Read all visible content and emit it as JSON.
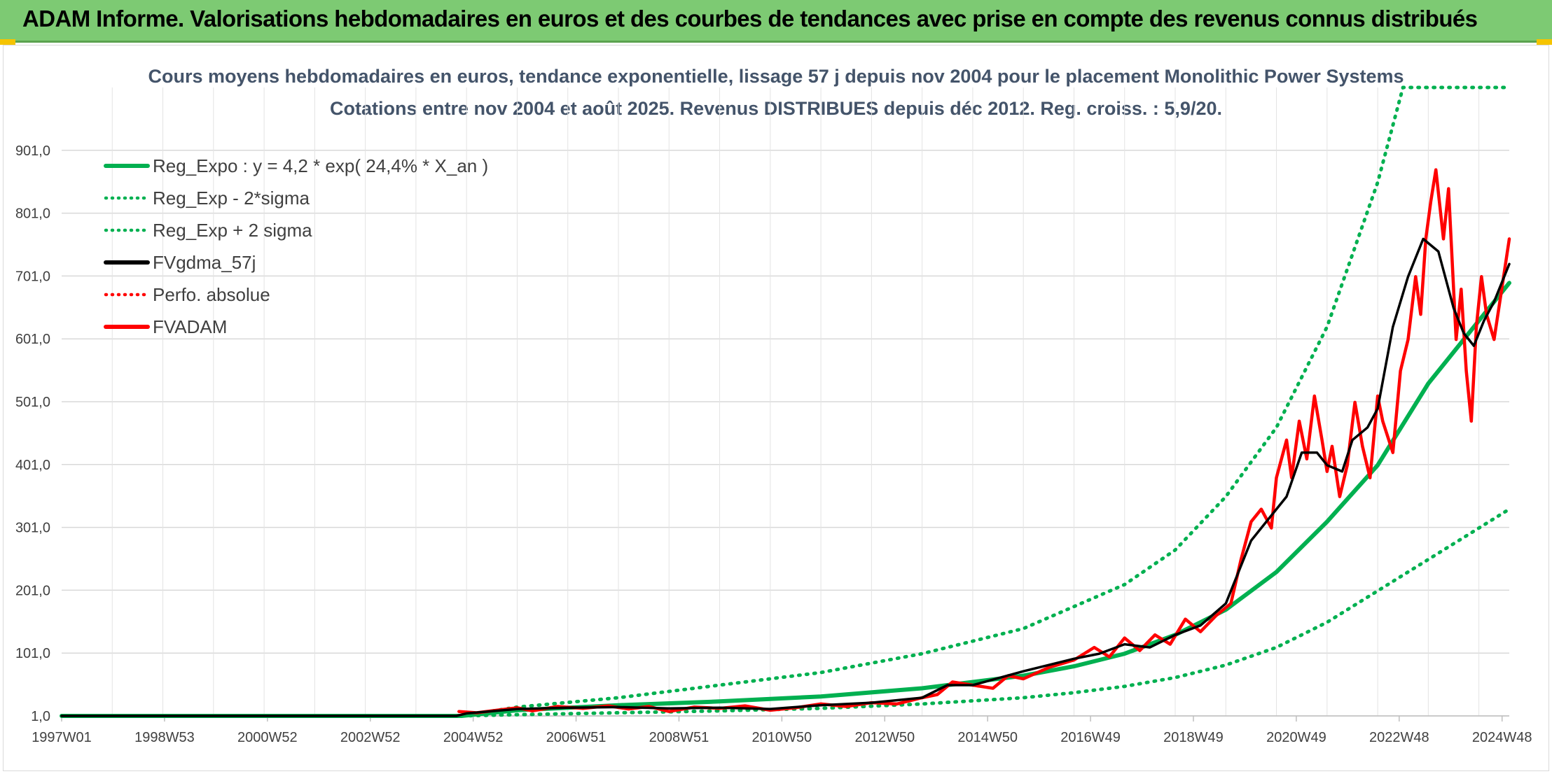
{
  "header": {
    "title": "ADAM Informe. Valorisations hebdomadaires en euros et des courbes de tendances avec prise en compte des revenus connus distribués"
  },
  "colors": {
    "header_bg": "#7dca73",
    "regression": "#00b050",
    "smoothing": "#000000",
    "price": "#ff0000"
  },
  "chart_data": {
    "type": "line",
    "title": "Cours moyens hebdomadaires en euros, tendance exponentielle, lissage 57 j depuis nov 2004 pour le placement Monolithic Power Systems",
    "subtitle": "Cotations entre nov 2004 et août 2025. Revenus DISTRIBUES depuis déc 2012. Reg. croiss. : 5,9/20.",
    "xlabel": "",
    "ylabel": "",
    "x_range": [
      1997.0,
      2025.6
    ],
    "ylim": [
      1.0,
      1001.0
    ],
    "y_ticks": [
      "1,0",
      "101,0",
      "201,0",
      "301,0",
      "401,0",
      "501,0",
      "601,0",
      "701,0",
      "801,0",
      "901,0"
    ],
    "x_ticks": [
      "1997W01",
      "1998W53",
      "2000W52",
      "2002W52",
      "2004W52",
      "2006W51",
      "2008W51",
      "2010W50",
      "2012W50",
      "2014W50",
      "2016W49",
      "2018W49",
      "2020W49",
      "2022W48",
      "2024W48"
    ],
    "grid": true,
    "legend_position": "top-left",
    "legend": [
      {
        "label": "Reg_Expo : y = 4,2 * exp( 24,4% *  X_an )",
        "color": "#00b050",
        "style": "solid"
      },
      {
        "label": "Reg_Exp - 2*sigma",
        "color": "#00b050",
        "style": "dotted"
      },
      {
        "label": "Reg_Exp + 2 sigma",
        "color": "#00b050",
        "style": "dotted"
      },
      {
        "label": "FVgdma_57j",
        "color": "#000000",
        "style": "solid"
      },
      {
        "label": "Perfo. absolue",
        "color": "#ff0000",
        "style": "dotted"
      },
      {
        "label": "FVADAM",
        "color": "#ff0000",
        "style": "solid"
      }
    ],
    "series": [
      {
        "name": "Reg_Expo : y = 4,2 * exp( 24,4% *  X_an )",
        "x": [
          1997.0,
          2004.9,
          2006.0,
          2008.0,
          2010.0,
          2012.0,
          2014.0,
          2016.0,
          2017.0,
          2018.0,
          2019.0,
          2020.0,
          2021.0,
          2022.0,
          2023.0,
          2024.0,
          2025.6
        ],
        "values": [
          1.0,
          1.0,
          10,
          18,
          24,
          32,
          45,
          65,
          80,
          100,
          130,
          170,
          230,
          310,
          400,
          530,
          690
        ]
      },
      {
        "name": "Reg_Exp - 2*sigma",
        "x": [
          1997.0,
          2004.9,
          2006.0,
          2008.0,
          2010.0,
          2012.0,
          2014.0,
          2016.0,
          2017.0,
          2018.0,
          2019.0,
          2020.0,
          2021.0,
          2022.0,
          2023.0,
          2024.0,
          2025.6
        ],
        "values": [
          1.0,
          1.0,
          3,
          6,
          9,
          13,
          20,
          30,
          38,
          48,
          62,
          82,
          110,
          150,
          200,
          250,
          330
        ]
      },
      {
        "name": "Reg_Exp + 2 sigma",
        "x": [
          1997.0,
          2004.9,
          2006.0,
          2008.0,
          2010.0,
          2012.0,
          2014.0,
          2016.0,
          2017.0,
          2018.0,
          2019.0,
          2020.0,
          2021.0,
          2022.0,
          2023.0,
          2023.5,
          2025.6
        ],
        "values": [
          1.0,
          1.0,
          15,
          30,
          50,
          70,
          100,
          140,
          175,
          210,
          265,
          350,
          460,
          620,
          850,
          1001,
          1001
        ]
      },
      {
        "name": "FVgdma_57j",
        "x": [
          1997.0,
          2004.8,
          2005.0,
          2006.0,
          2007.0,
          2008.0,
          2009.0,
          2010.0,
          2011.0,
          2012.0,
          2013.0,
          2014.0,
          2014.5,
          2015.0,
          2016.0,
          2017.0,
          2017.5,
          2018.0,
          2018.5,
          2019.0,
          2019.5,
          2020.0,
          2020.5,
          2020.8,
          2021.2,
          2021.5,
          2021.8,
          2022.0,
          2022.3,
          2022.5,
          2022.8,
          2023.0,
          2023.3,
          2023.6,
          2023.9,
          2024.2,
          2024.5,
          2024.7,
          2024.9,
          2025.1,
          2025.3,
          2025.6
        ],
        "values": [
          1.0,
          1.0,
          5,
          12,
          14,
          15,
          13,
          14,
          12,
          18,
          22,
          30,
          50,
          50,
          72,
          92,
          100,
          115,
          110,
          130,
          145,
          180,
          280,
          310,
          350,
          420,
          420,
          400,
          390,
          440,
          460,
          490,
          620,
          700,
          760,
          740,
          650,
          610,
          590,
          630,
          660,
          720
        ]
      },
      {
        "name": "FVADAM",
        "x": [
          2004.85,
          2005.2,
          2005.6,
          2006.0,
          2006.3,
          2006.8,
          2007.3,
          2007.8,
          2008.2,
          2008.6,
          2009.0,
          2009.5,
          2010.0,
          2010.5,
          2011.0,
          2011.5,
          2012.0,
          2012.5,
          2013.0,
          2013.5,
          2014.0,
          2014.3,
          2014.6,
          2015.0,
          2015.4,
          2015.7,
          2016.0,
          2016.5,
          2017.0,
          2017.4,
          2017.7,
          2018.0,
          2018.3,
          2018.6,
          2018.9,
          2019.2,
          2019.5,
          2019.8,
          2020.1,
          2020.3,
          2020.5,
          2020.7,
          2020.9,
          2021.0,
          2021.2,
          2021.3,
          2021.45,
          2021.6,
          2021.75,
          2021.9,
          2022.0,
          2022.1,
          2022.25,
          2022.4,
          2022.55,
          2022.7,
          2022.85,
          2023.0,
          2023.1,
          2023.3,
          2023.45,
          2023.6,
          2023.75,
          2023.85,
          2023.95,
          2024.05,
          2024.15,
          2024.3,
          2024.4,
          2024.55,
          2024.65,
          2024.75,
          2024.85,
          2024.95,
          2025.05,
          2025.15,
          2025.3,
          2025.45,
          2025.6
        ],
        "values": [
          8,
          6,
          10,
          14,
          9,
          16,
          13,
          17,
          12,
          16,
          8,
          15,
          13,
          17,
          10,
          14,
          20,
          16,
          22,
          20,
          30,
          35,
          55,
          50,
          45,
          65,
          60,
          78,
          90,
          110,
          95,
          125,
          105,
          130,
          115,
          155,
          135,
          160,
          180,
          250,
          310,
          330,
          300,
          380,
          440,
          380,
          470,
          410,
          510,
          440,
          390,
          430,
          350,
          400,
          500,
          430,
          380,
          510,
          470,
          420,
          550,
          600,
          700,
          640,
          760,
          820,
          870,
          760,
          840,
          600,
          680,
          550,
          470,
          620,
          700,
          640,
          600,
          680,
          760
        ]
      }
    ]
  }
}
